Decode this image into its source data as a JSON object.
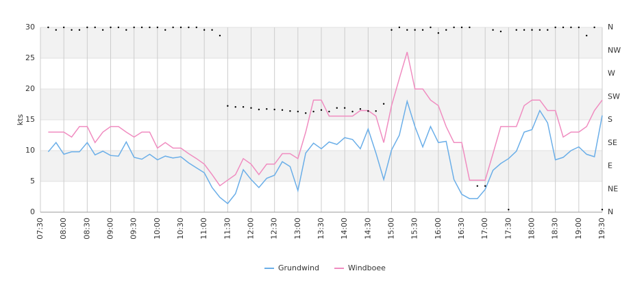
{
  "chart_data": {
    "type": "line",
    "y_label": "kts",
    "categories": [
      "07:30",
      null,
      null,
      "08:00",
      null,
      null,
      "08:30",
      null,
      null,
      "09:00",
      null,
      null,
      "09:30",
      null,
      null,
      "10:00",
      null,
      null,
      "10:30",
      null,
      null,
      "11:00",
      null,
      null,
      "11:30",
      null,
      null,
      "12:00",
      null,
      null,
      "12:30",
      null,
      null,
      "13:00",
      null,
      null,
      "13:30",
      null,
      null,
      "14:00",
      null,
      null,
      "14:30",
      null,
      null,
      "15:00",
      null,
      null,
      "15:30",
      null,
      null,
      "16:00",
      null,
      null,
      "16:30",
      null,
      null,
      "17:00",
      null,
      null,
      "17:30",
      null,
      null,
      "18:00",
      null,
      null,
      "18:30",
      null,
      null,
      "19:00",
      null,
      null,
      "19:30"
    ],
    "series": [
      {
        "name": "Grundwind",
        "color": "#6aaee8",
        "values": [
          null,
          9.8,
          11.3,
          9.4,
          9.8,
          9.8,
          11.3,
          9.3,
          9.9,
          9.2,
          9.1,
          11.4,
          8.9,
          8.6,
          9.4,
          8.5,
          9.1,
          8.8,
          9.0,
          8.0,
          7.2,
          6.4,
          4.0,
          2.4,
          1.4,
          3.0,
          6.9,
          5.3,
          4.0,
          5.5,
          6.0,
          8.2,
          7.4,
          3.5,
          9.6,
          11.2,
          10.3,
          11.4,
          11.0,
          12.1,
          11.8,
          10.3,
          13.5,
          9.6,
          5.3,
          10.1,
          12.5,
          18.0,
          13.9,
          10.6,
          13.9,
          11.3,
          11.5,
          5.3,
          2.9,
          2.2,
          2.2,
          3.7,
          6.8,
          7.9,
          8.7,
          9.9,
          13.0,
          13.4,
          16.5,
          14.5,
          8.5,
          8.9,
          10.0,
          10.6,
          9.4,
          9.0,
          15.7
        ]
      },
      {
        "name": "Windboee",
        "color": "#f08cc0",
        "values": [
          null,
          13.0,
          13.0,
          13.0,
          12.2,
          13.9,
          13.9,
          11.3,
          13.0,
          13.9,
          13.9,
          13.0,
          12.2,
          13.0,
          13.0,
          10.4,
          11.3,
          10.4,
          10.4,
          9.5,
          8.7,
          7.8,
          6.1,
          4.3,
          5.2,
          6.1,
          8.7,
          7.8,
          6.1,
          7.8,
          7.8,
          9.5,
          9.5,
          8.7,
          13.0,
          18.2,
          18.2,
          15.6,
          15.6,
          15.6,
          15.6,
          16.5,
          16.5,
          15.6,
          11.3,
          17.3,
          21.7,
          26.0,
          20.0,
          20.0,
          18.2,
          17.3,
          13.9,
          11.3,
          11.3,
          5.2,
          5.2,
          5.2,
          9.5,
          13.9,
          13.9,
          13.9,
          17.3,
          18.2,
          18.2,
          16.5,
          16.5,
          12.2,
          13.0,
          13.0,
          13.9,
          16.5,
          18.2
        ]
      }
    ],
    "direction": {
      "axis": "y2",
      "color": "#000000",
      "values": [
        null,
        360,
        355,
        360,
        355,
        355,
        360,
        360,
        355,
        360,
        360,
        355,
        360,
        360,
        360,
        360,
        355,
        360,
        360,
        360,
        360,
        355,
        355,
        344,
        207,
        205,
        205,
        203,
        200,
        201,
        200,
        199,
        197,
        196,
        193,
        196,
        199,
        196,
        203,
        203,
        196,
        201,
        197,
        197,
        211,
        355,
        360,
        355,
        355,
        355,
        360,
        349,
        355,
        360,
        360,
        360,
        51,
        51,
        355,
        352,
        5,
        355,
        355,
        355,
        355,
        355,
        360,
        360,
        360,
        360,
        344,
        360,
        5
      ]
    },
    "ylim": [
      0,
      30
    ],
    "yticks": [
      0,
      5,
      10,
      15,
      20,
      25,
      30
    ],
    "y2lim": [
      0,
      360
    ],
    "y2ticks": [
      {
        "value": 0,
        "label": "N"
      },
      {
        "value": 45,
        "label": "NE"
      },
      {
        "value": 90,
        "label": "E"
      },
      {
        "value": 135,
        "label": "SE"
      },
      {
        "value": 180,
        "label": "S"
      },
      {
        "value": 225,
        "label": "SW"
      },
      {
        "value": 270,
        "label": "W"
      },
      {
        "value": 315,
        "label": "NW"
      },
      {
        "value": 360,
        "label": "N"
      }
    ],
    "grid": true,
    "bands": true,
    "band_color": "#f2f2f2",
    "legend": "bottom"
  }
}
